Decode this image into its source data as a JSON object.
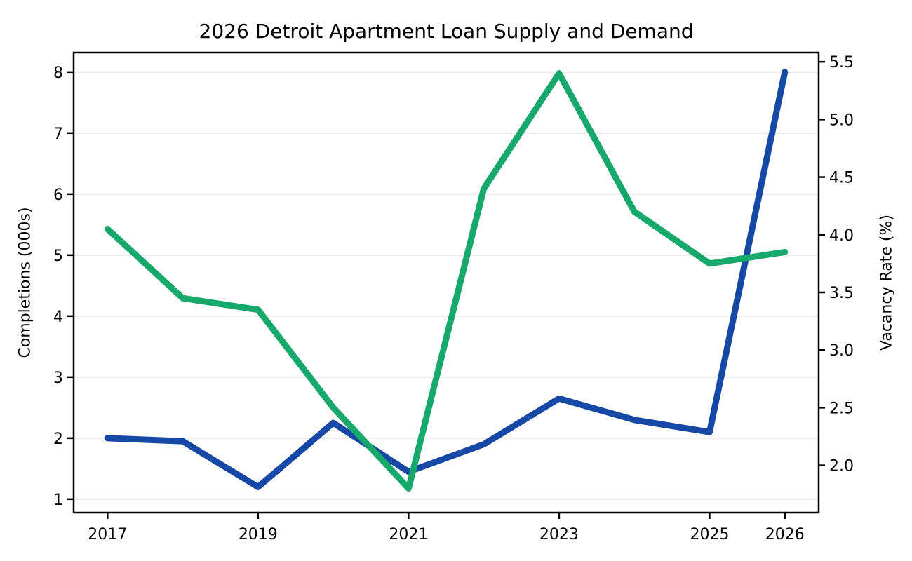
{
  "chart_data": {
    "type": "line",
    "title": "2026 Detroit Apartment Loan Supply and Demand",
    "x": [
      2017,
      2018,
      2019,
      2020,
      2021,
      2022,
      2023,
      2024,
      2025,
      2026
    ],
    "xlim": [
      2016.55,
      2026.45
    ],
    "x_ticks": [
      2017,
      2019,
      2021,
      2023,
      2025,
      2026
    ],
    "x_tick_labels": [
      "2017",
      "2019",
      "2021",
      "2023",
      "2025",
      "2026"
    ],
    "series": [
      {
        "key": "completions",
        "name": "Completions (000s)",
        "axis": "left",
        "color": "#1649a5",
        "values": [
          2.0,
          1.95,
          1.2,
          2.25,
          1.45,
          1.9,
          2.65,
          2.3,
          2.1,
          8.0
        ]
      },
      {
        "key": "vacancy-rate",
        "name": "Vacancy Rate (%)",
        "axis": "right",
        "color": "#17a96b",
        "values": [
          4.05,
          3.45,
          3.35,
          2.5,
          1.8,
          4.4,
          5.4,
          4.2,
          3.75,
          3.85
        ]
      }
    ],
    "left_axis": {
      "label": "Completions (000s)",
      "ticks": [
        1,
        2,
        3,
        4,
        5,
        6,
        7,
        8
      ],
      "tick_labels": [
        "1",
        "2",
        "3",
        "4",
        "5",
        "6",
        "7",
        "8"
      ],
      "lim": [
        0.78,
        8.32
      ]
    },
    "right_axis": {
      "label": "Vacancy Rate (%)",
      "ticks": [
        2.0,
        2.5,
        3.0,
        3.5,
        4.0,
        4.5,
        5.0,
        5.5
      ],
      "tick_labels": [
        "2.0",
        "2.5",
        "3.0",
        "3.5",
        "4.0",
        "4.5",
        "5.0",
        "5.5"
      ],
      "lim": [
        1.59,
        5.58
      ]
    },
    "grid": "horizontal gridlines at left-axis ticks",
    "legend": "none"
  },
  "colors": {
    "background": "#ffffff",
    "grid": "#e9e9e9",
    "spine": "#000000",
    "text": "#000000",
    "completions_line": "#1649a5",
    "vacancy_line": "#17a96b"
  }
}
